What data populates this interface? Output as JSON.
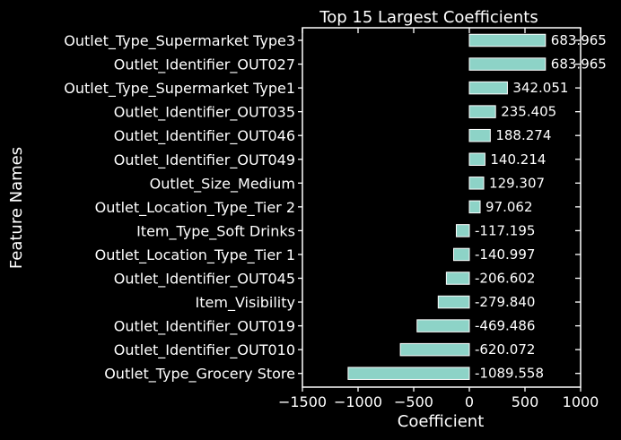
{
  "chart_data": {
    "type": "bar",
    "orientation": "horizontal",
    "title": "Top 15 Largest Coefficients",
    "xlabel": "Coefficient",
    "ylabel": "Feature Names",
    "xlim": [
      -1500,
      1000
    ],
    "xticks": [
      -1500,
      -1000,
      -500,
      0,
      500,
      1000
    ],
    "xtick_labels": [
      "−1500",
      "−1000",
      "−500",
      "0",
      "500",
      "1000"
    ],
    "grid": false,
    "bar_color": "#8dd3c7",
    "background": "#000000",
    "categories": [
      "Outlet_Type_Supermarket Type3",
      "Outlet_Identifier_OUT027",
      "Outlet_Type_Supermarket Type1",
      "Outlet_Identifier_OUT035",
      "Outlet_Identifier_OUT046",
      "Outlet_Identifier_OUT049",
      "Outlet_Size_Medium",
      "Outlet_Location_Type_Tier 2",
      "Item_Type_Soft Drinks",
      "Outlet_Location_Type_Tier 1",
      "Outlet_Identifier_OUT045",
      "Item_Visibility",
      "Outlet_Identifier_OUT019",
      "Outlet_Identifier_OUT010",
      "Outlet_Type_Grocery Store"
    ],
    "values": [
      683.965,
      683.965,
      342.051,
      235.405,
      188.274,
      140.214,
      129.307,
      97.062,
      -117.195,
      -140.997,
      -206.602,
      -279.84,
      -469.486,
      -620.072,
      -1089.558
    ],
    "value_labels": [
      "683.965",
      "683.965",
      "342.051",
      "235.405",
      "188.274",
      "140.214",
      "129.307",
      "97.062",
      "-117.195",
      "-140.997",
      "-206.602",
      "-279.840",
      "-469.486",
      "-620.072",
      "-1089.558"
    ]
  }
}
